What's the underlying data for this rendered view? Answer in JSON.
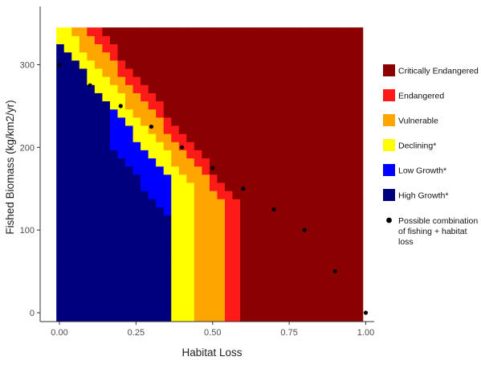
{
  "chart_data": {
    "type": "heatmap",
    "xlabel": "Habitat Loss",
    "ylabel": "Fished Biomass (kg/km2/yr)",
    "xlim": [
      0,
      1
    ],
    "ylim": [
      -10,
      355
    ],
    "x_ticks": [
      {
        "value": 0,
        "label": "0.00"
      },
      {
        "value": 0.25,
        "label": "0.25"
      },
      {
        "value": 0.5,
        "label": "0.50"
      },
      {
        "value": 0.75,
        "label": "0.75"
      },
      {
        "value": 1,
        "label": "1.00"
      }
    ],
    "y_ticks": [
      {
        "value": 0,
        "label": "0"
      },
      {
        "value": 100,
        "label": "100"
      },
      {
        "value": 200,
        "label": "200"
      },
      {
        "value": 300,
        "label": "300"
      }
    ],
    "grid": false,
    "legend_position": "right",
    "categories": [
      {
        "name": "Critically Endangered",
        "color": "#8b0000"
      },
      {
        "name": "Endangered",
        "color": "#ff1a1a"
      },
      {
        "name": "Vulnerable",
        "color": "#ffa500"
      },
      {
        "name": "Declining*",
        "color": "#ffff00"
      },
      {
        "name": "Low Growth*",
        "color": "#0000ff"
      },
      {
        "name": "High Growth*",
        "color": "#00007f"
      }
    ],
    "points_legend": "Possible combination of fishing + habitat loss",
    "points_legend_lines": [
      "Possible combination",
      "of fishing + habitat",
      "loss"
    ],
    "points": [
      {
        "x": 0.0,
        "y": 300
      },
      {
        "x": 0.1,
        "y": 275
      },
      {
        "x": 0.2,
        "y": 250
      },
      {
        "x": 0.3,
        "y": 225
      },
      {
        "x": 0.4,
        "y": 200
      },
      {
        "x": 0.5,
        "y": 175
      },
      {
        "x": 0.6,
        "y": 150
      },
      {
        "x": 0.7,
        "y": 125
      },
      {
        "x": 0.8,
        "y": 100
      },
      {
        "x": 0.9,
        "y": 50
      },
      {
        "x": 1.0,
        "y": 0
      }
    ]
  }
}
